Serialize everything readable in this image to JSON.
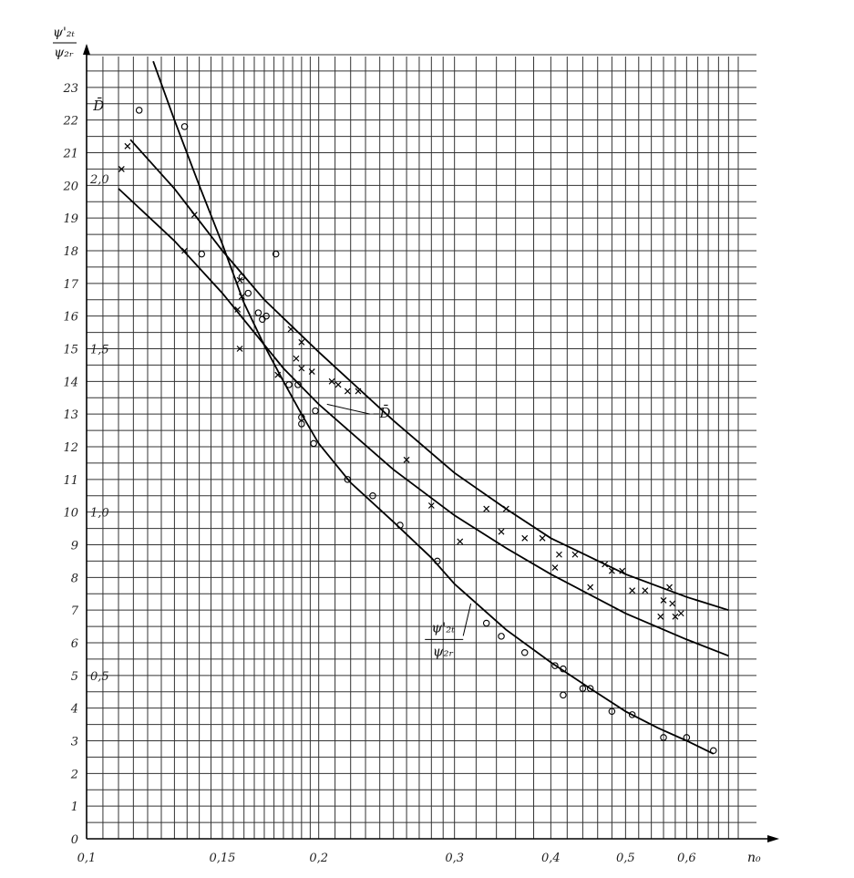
{
  "chart_data": {
    "type": "scatter",
    "title": "",
    "xlabel": "n₀",
    "ylabel_top": "ψ'₂ₜ",
    "ylabel_bottom": "ψ₂ᵣ",
    "x_scale": "log",
    "xlim": [
      0.1,
      0.7
    ],
    "ylim": [
      0,
      24
    ],
    "x_ticks": [
      {
        "value": 0.1,
        "label": "0,1"
      },
      {
        "value": 0.15,
        "label": "0,15"
      },
      {
        "value": 0.2,
        "label": "0,2"
      },
      {
        "value": 0.3,
        "label": "0,3"
      },
      {
        "value": 0.4,
        "label": "0,4"
      },
      {
        "value": 0.5,
        "label": "0,5"
      },
      {
        "value": 0.6,
        "label": "0,6"
      }
    ],
    "y_ticks": [
      "0",
      "1",
      "2",
      "3",
      "4",
      "5",
      "6",
      "7",
      "8",
      "9",
      "10",
      "11",
      "12",
      "13",
      "14",
      "15",
      "16",
      "17",
      "18",
      "19",
      "20",
      "21",
      "22",
      "23"
    ],
    "y2_ticks": [
      {
        "value": 2.0,
        "label": "2,0",
        "at": 20.2
      },
      {
        "value": 1.5,
        "label": "1,5",
        "at": 15
      },
      {
        "value": 1.0,
        "label": "1,0",
        "at": 10
      },
      {
        "value": 0.5,
        "label": "0,5",
        "at": 5
      }
    ],
    "grid": true,
    "annotations": [
      {
        "text": "D̄",
        "x": 0.102,
        "y": 22.3
      },
      {
        "text": "–D̄",
        "x": 0.235,
        "y": 12.9
      }
    ],
    "curve_label": {
      "top": "ψ'₂ₜ",
      "bottom": "ψ₂ᵣ",
      "x": 0.29,
      "y": 6.1
    },
    "series": [
      {
        "id": "psi_ratio_curve",
        "marker": "none",
        "points": [
          [
            0.122,
            23.8
          ],
          [
            0.13,
            22.0
          ],
          [
            0.14,
            20.0
          ],
          [
            0.15,
            18.2
          ],
          [
            0.16,
            16.4
          ],
          [
            0.17,
            15.1
          ],
          [
            0.18,
            14.0
          ],
          [
            0.19,
            13.0
          ],
          [
            0.2,
            12.1
          ],
          [
            0.22,
            10.9
          ],
          [
            0.25,
            9.7
          ],
          [
            0.28,
            8.6
          ],
          [
            0.3,
            7.8
          ],
          [
            0.35,
            6.4
          ],
          [
            0.4,
            5.4
          ],
          [
            0.45,
            4.6
          ],
          [
            0.5,
            3.9
          ],
          [
            0.55,
            3.4
          ],
          [
            0.6,
            3.0
          ],
          [
            0.65,
            2.6
          ]
        ]
      },
      {
        "id": "D_curve",
        "marker": "none",
        "points": [
          [
            0.114,
            21.4
          ],
          [
            0.13,
            19.9
          ],
          [
            0.15,
            18.0
          ],
          [
            0.17,
            16.5
          ],
          [
            0.2,
            14.9
          ],
          [
            0.25,
            12.8
          ],
          [
            0.3,
            11.2
          ],
          [
            0.35,
            10.1
          ],
          [
            0.4,
            9.2
          ],
          [
            0.5,
            8.1
          ],
          [
            0.6,
            7.4
          ],
          [
            0.68,
            7.0
          ]
        ]
      },
      {
        "id": "middle_curve",
        "marker": "none",
        "points": [
          [
            0.11,
            19.9
          ],
          [
            0.13,
            18.3
          ],
          [
            0.15,
            16.7
          ],
          [
            0.18,
            14.4
          ],
          [
            0.2,
            13.3
          ],
          [
            0.25,
            11.3
          ],
          [
            0.3,
            9.9
          ],
          [
            0.35,
            8.9
          ],
          [
            0.4,
            8.1
          ],
          [
            0.5,
            6.9
          ],
          [
            0.6,
            6.1
          ],
          [
            0.68,
            5.6
          ]
        ]
      },
      {
        "id": "circles",
        "marker": "circle",
        "points": [
          [
            0.117,
            22.3
          ],
          [
            0.134,
            21.8
          ],
          [
            0.141,
            17.9
          ],
          [
            0.176,
            17.9
          ],
          [
            0.159,
            17.2
          ],
          [
            0.162,
            16.7
          ],
          [
            0.167,
            16.1
          ],
          [
            0.169,
            15.9
          ],
          [
            0.171,
            16.0
          ],
          [
            0.183,
            13.9
          ],
          [
            0.188,
            13.9
          ],
          [
            0.19,
            12.9
          ],
          [
            0.19,
            12.7
          ],
          [
            0.198,
            13.1
          ],
          [
            0.197,
            12.1
          ],
          [
            0.218,
            11.0
          ],
          [
            0.235,
            10.5
          ],
          [
            0.255,
            9.6
          ],
          [
            0.285,
            8.5
          ],
          [
            0.33,
            6.6
          ],
          [
            0.345,
            6.2
          ],
          [
            0.37,
            5.7
          ],
          [
            0.405,
            5.3
          ],
          [
            0.415,
            5.2
          ],
          [
            0.415,
            4.4
          ],
          [
            0.44,
            4.6
          ],
          [
            0.45,
            4.6
          ],
          [
            0.48,
            3.9
          ],
          [
            0.51,
            3.8
          ],
          [
            0.56,
            3.1
          ],
          [
            0.6,
            3.1
          ],
          [
            0.65,
            2.7
          ]
        ]
      },
      {
        "id": "crosses",
        "marker": "x",
        "points": [
          [
            0.113,
            21.2
          ],
          [
            0.111,
            20.5
          ],
          [
            0.138,
            19.1
          ],
          [
            0.134,
            18.0
          ],
          [
            0.158,
            17.1
          ],
          [
            0.159,
            16.6
          ],
          [
            0.157,
            16.2
          ],
          [
            0.158,
            15.0
          ],
          [
            0.177,
            14.2
          ],
          [
            0.184,
            15.6
          ],
          [
            0.19,
            15.2
          ],
          [
            0.187,
            14.7
          ],
          [
            0.19,
            14.4
          ],
          [
            0.196,
            14.3
          ],
          [
            0.208,
            14.0
          ],
          [
            0.212,
            13.9
          ],
          [
            0.218,
            13.7
          ],
          [
            0.225,
            13.7
          ],
          [
            0.26,
            11.6
          ],
          [
            0.28,
            10.2
          ],
          [
            0.305,
            9.1
          ],
          [
            0.345,
            9.4
          ],
          [
            0.33,
            10.1
          ],
          [
            0.35,
            10.1
          ],
          [
            0.37,
            9.2
          ],
          [
            0.39,
            9.2
          ],
          [
            0.41,
            8.7
          ],
          [
            0.405,
            8.3
          ],
          [
            0.43,
            8.7
          ],
          [
            0.45,
            7.7
          ],
          [
            0.47,
            8.4
          ],
          [
            0.48,
            8.2
          ],
          [
            0.495,
            8.2
          ],
          [
            0.51,
            7.6
          ],
          [
            0.53,
            7.6
          ],
          [
            0.56,
            7.3
          ],
          [
            0.555,
            6.8
          ],
          [
            0.57,
            7.7
          ],
          [
            0.575,
            7.2
          ],
          [
            0.58,
            6.8
          ],
          [
            0.59,
            6.9
          ]
        ]
      }
    ]
  }
}
